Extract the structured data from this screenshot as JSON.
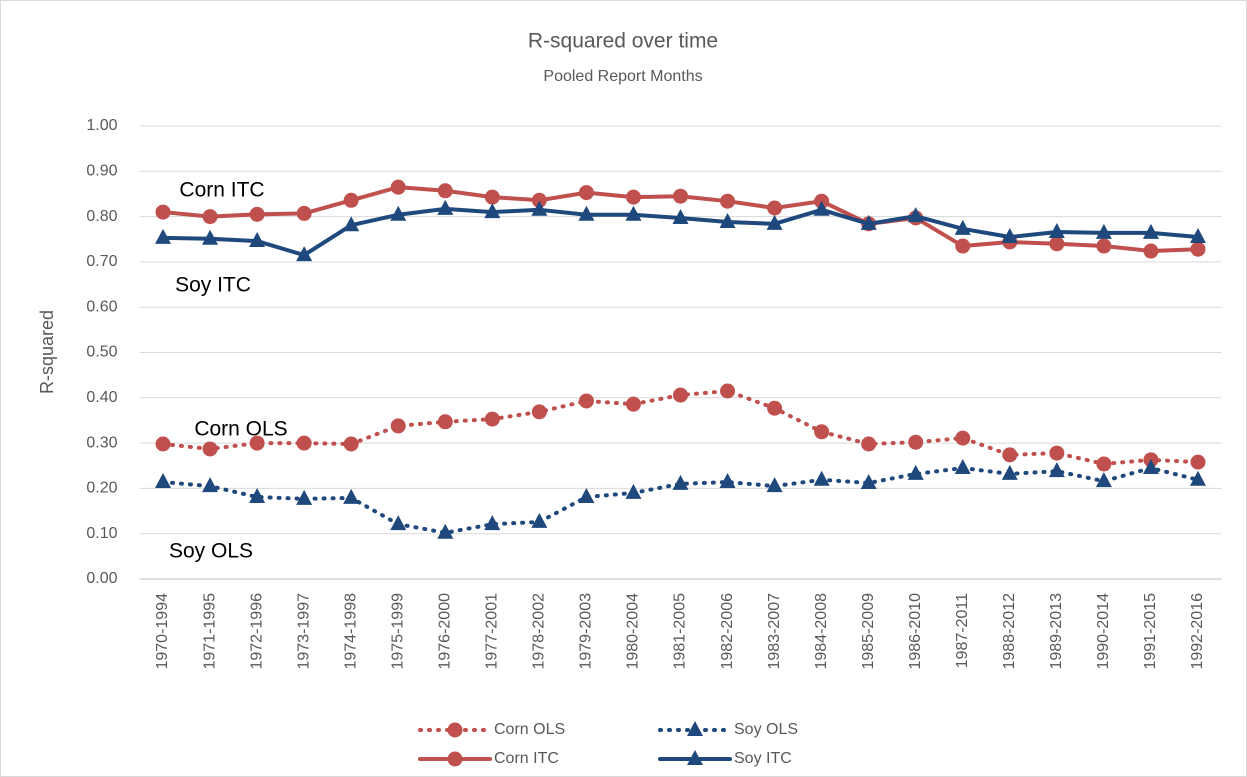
{
  "chart_data": {
    "type": "line",
    "title": "R-squared over time",
    "subtitle": "Pooled Report Months",
    "y_label": "R-squared",
    "categories": [
      "1970-1994",
      "1971-1995",
      "1972-1996",
      "1973-1997",
      "1974-1998",
      "1975-1999",
      "1976-2000",
      "1977-2001",
      "1978-2002",
      "1979-2003",
      "1980-2004",
      "1981-2005",
      "1982-2006",
      "1983-2007",
      "1984-2008",
      "1985-2009",
      "1986-2010",
      "1987-2011",
      "1988-2012",
      "1989-2013",
      "1990-2014",
      "1991-2015",
      "1992-2016"
    ],
    "series": [
      {
        "name": "Corn OLS",
        "color": "#c0504d",
        "style": "dotted",
        "marker": "circle",
        "values": [
          0.298,
          0.287,
          0.3,
          0.3,
          0.298,
          0.338,
          0.347,
          0.353,
          0.369,
          0.393,
          0.386,
          0.406,
          0.415,
          0.377,
          0.325,
          0.298,
          0.302,
          0.311,
          0.274,
          0.278,
          0.254,
          0.263,
          0.258
        ]
      },
      {
        "name": "Soy OLS",
        "color": "#1f497d",
        "style": "dotted",
        "marker": "triangle",
        "values": [
          0.214,
          0.205,
          0.181,
          0.177,
          0.179,
          0.121,
          0.102,
          0.121,
          0.126,
          0.181,
          0.19,
          0.21,
          0.214,
          0.205,
          0.219,
          0.212,
          0.232,
          0.245,
          0.232,
          0.238,
          0.216,
          0.245,
          0.219
        ]
      },
      {
        "name": "Corn ITC",
        "color": "#c0504d",
        "style": "solid",
        "marker": "circle",
        "values": [
          0.81,
          0.8,
          0.805,
          0.807,
          0.836,
          0.865,
          0.857,
          0.843,
          0.836,
          0.853,
          0.843,
          0.845,
          0.834,
          0.819,
          0.834,
          0.784,
          0.797,
          0.735,
          0.744,
          0.74,
          0.735,
          0.724,
          0.728
        ]
      },
      {
        "name": "Soy ITC",
        "color": "#1f497d",
        "style": "solid",
        "marker": "triangle",
        "values": [
          0.753,
          0.751,
          0.746,
          0.715,
          0.781,
          0.804,
          0.817,
          0.81,
          0.815,
          0.804,
          0.804,
          0.797,
          0.788,
          0.784,
          0.815,
          0.784,
          0.801,
          0.773,
          0.755,
          0.766,
          0.764,
          0.764,
          0.755
        ]
      }
    ],
    "annotations": [
      "Corn ITC",
      "Soy ITC",
      "Corn OLS",
      "Soy OLS"
    ],
    "ylim": [
      0,
      1
    ],
    "yticks": [
      {
        "value": 0,
        "label": "0.00"
      },
      {
        "value": 0.1,
        "label": "0.10"
      },
      {
        "value": 0.2,
        "label": "0.20"
      },
      {
        "value": 0.3,
        "label": "0.30"
      },
      {
        "value": 0.4,
        "label": "0.40"
      },
      {
        "value": 0.5,
        "label": "0.50"
      },
      {
        "value": 0.6,
        "label": "0.60"
      },
      {
        "value": 0.7,
        "label": "0.70"
      },
      {
        "value": 0.8,
        "label": "0.80"
      },
      {
        "value": 0.9,
        "label": "0.90"
      },
      {
        "value": 1,
        "label": "1.00"
      }
    ],
    "grid": true
  }
}
